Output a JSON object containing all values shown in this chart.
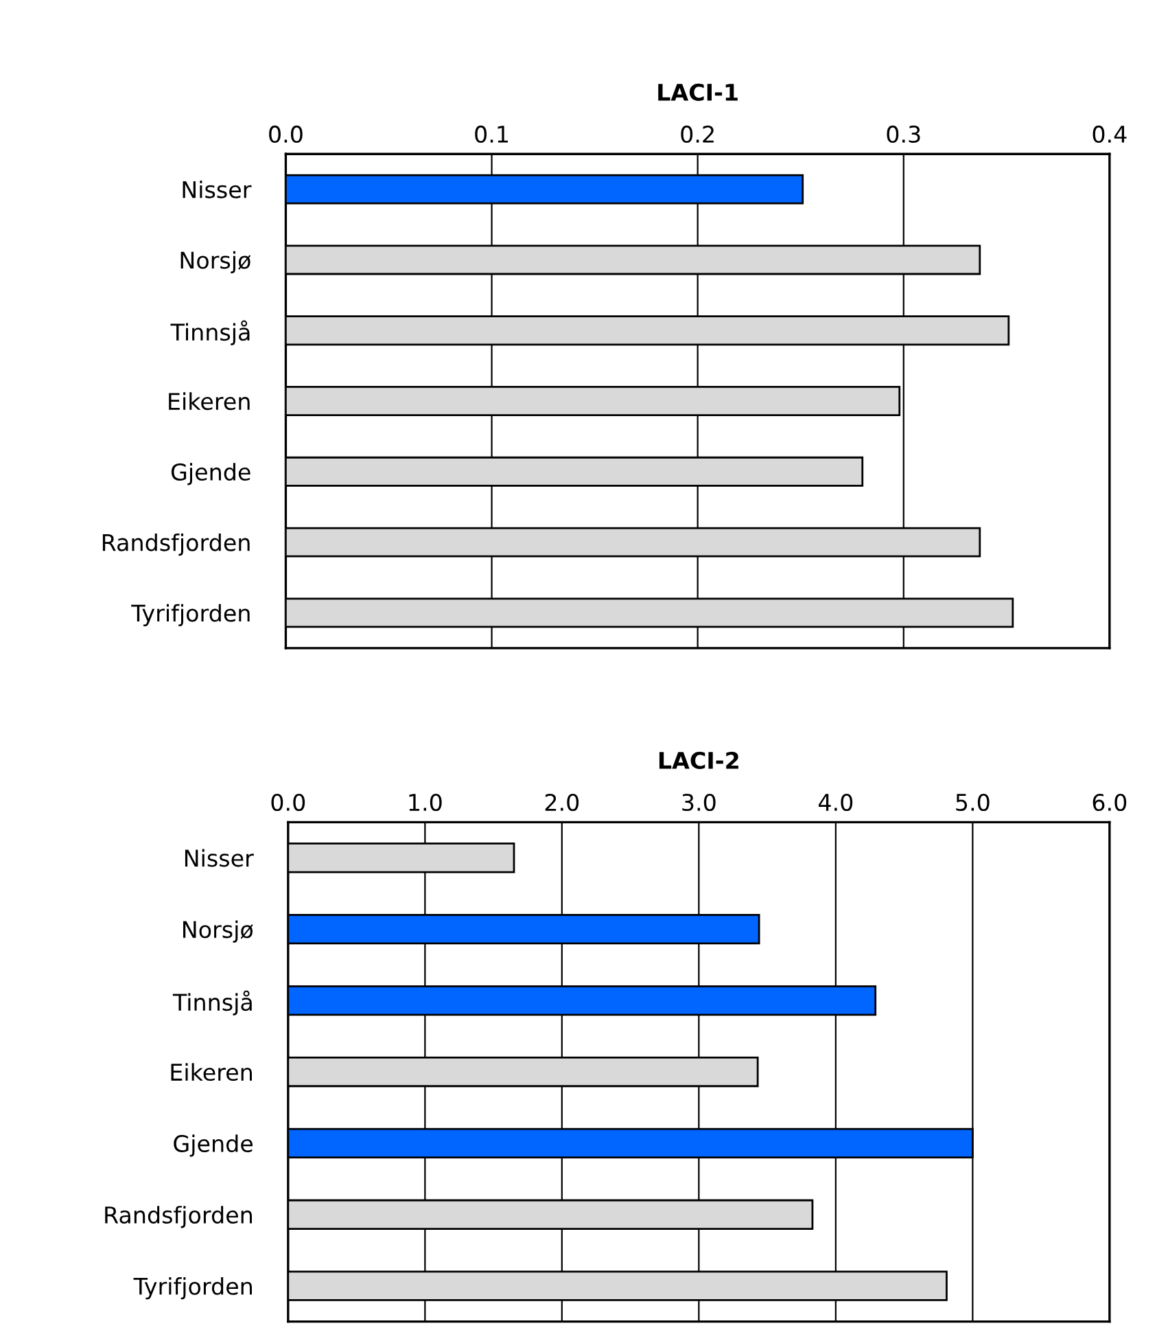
{
  "chart_data": [
    {
      "type": "bar",
      "orientation": "horizontal",
      "title": "LACI-1",
      "categories": [
        "Nisser",
        "Norsjø",
        "Tinnsjå",
        "Eikeren",
        "Gjende",
        "Randsfjorden",
        "Tyrifjorden"
      ],
      "values": [
        0.251,
        0.337,
        0.351,
        0.298,
        0.28,
        0.337,
        0.353
      ],
      "colors": [
        "#0066ff",
        "#d9d9d9",
        "#d9d9d9",
        "#d9d9d9",
        "#d9d9d9",
        "#d9d9d9",
        "#d9d9d9"
      ],
      "xlim": [
        0,
        0.4
      ],
      "xticks": [
        {
          "value": 0,
          "label": "0.0"
        },
        0.1,
        0.2,
        0.3,
        0.4
      ],
      "grid": "x",
      "legend": false
    },
    {
      "type": "bar",
      "orientation": "horizontal",
      "title": "LACI-2",
      "categories": [
        "Nisser",
        "Norsjø",
        "Tinnsjå",
        "Eikeren",
        "Gjende",
        "Randsfjorden",
        "Tyrifjorden"
      ],
      "values": [
        1.65,
        3.44,
        4.29,
        3.43,
        5.0,
        3.83,
        4.81
      ],
      "colors": [
        "#d9d9d9",
        "#0066ff",
        "#0066ff",
        "#d9d9d9",
        "#0066ff",
        "#d9d9d9",
        "#d9d9d9"
      ],
      "xlim": [
        0,
        6
      ],
      "xticks": [
        {
          "value": 0,
          "label": "0.0"
        },
        {
          "value": 1,
          "label": "1.0"
        },
        {
          "value": 2,
          "label": "2.0"
        },
        {
          "value": 3,
          "label": "3.0"
        },
        {
          "value": 4,
          "label": "4.0"
        },
        {
          "value": 5,
          "label": "5.0"
        },
        {
          "value": 6,
          "label": "6.0"
        }
      ],
      "grid": "x",
      "legend": false
    }
  ]
}
